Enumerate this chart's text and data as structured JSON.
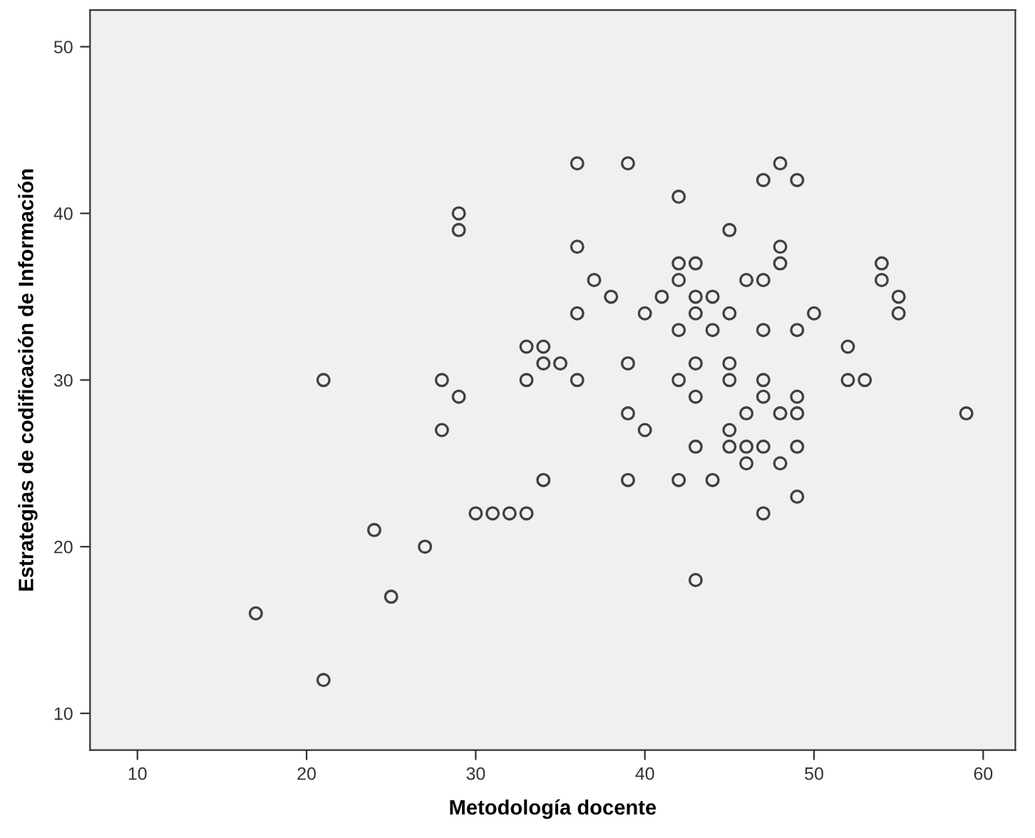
{
  "chart_data": {
    "type": "scatter",
    "xlabel": "Metodología docente",
    "ylabel": "Estrategias de codificación de Información",
    "xlim": [
      7.2,
      61.9
    ],
    "ylim": [
      7.8,
      52.2
    ],
    "xticks": [
      10,
      20,
      30,
      40,
      50,
      60
    ],
    "yticks": [
      10,
      20,
      30,
      40,
      50
    ],
    "marker": "circle",
    "series": [
      {
        "color": "#404040",
        "x": [
          17,
          21,
          21,
          24,
          25,
          27,
          28,
          28,
          29,
          29,
          29,
          30,
          31,
          32,
          33,
          33,
          33,
          34,
          34,
          34,
          35,
          36,
          36,
          36,
          36,
          37,
          38,
          39,
          39,
          39,
          39,
          40,
          40,
          41,
          42,
          42,
          42,
          42,
          42,
          42,
          43,
          43,
          43,
          43,
          43,
          43,
          43,
          44,
          44,
          44,
          45,
          45,
          45,
          45,
          45,
          45,
          46,
          46,
          46,
          46,
          47,
          47,
          47,
          47,
          47,
          47,
          47,
          48,
          48,
          48,
          48,
          48,
          49,
          49,
          49,
          49,
          49,
          49,
          50,
          52,
          52,
          53,
          54,
          54,
          55,
          55,
          59
        ],
        "values": [
          16,
          30,
          12,
          21,
          17,
          20,
          30,
          27,
          40,
          39,
          29,
          22,
          22,
          22,
          22,
          32,
          30,
          32,
          31,
          24,
          31,
          43,
          38,
          34,
          30,
          36,
          35,
          43,
          31,
          28,
          24,
          34,
          27,
          35,
          41,
          37,
          36,
          33,
          30,
          24,
          37,
          35,
          34,
          31,
          29,
          26,
          18,
          35,
          33,
          24,
          39,
          34,
          31,
          30,
          27,
          26,
          36,
          28,
          26,
          25,
          42,
          36,
          33,
          30,
          29,
          26,
          22,
          43,
          38,
          37,
          28,
          25,
          42,
          33,
          29,
          28,
          26,
          23,
          34,
          32,
          30,
          30,
          37,
          36,
          35,
          34,
          28
        ]
      }
    ]
  }
}
